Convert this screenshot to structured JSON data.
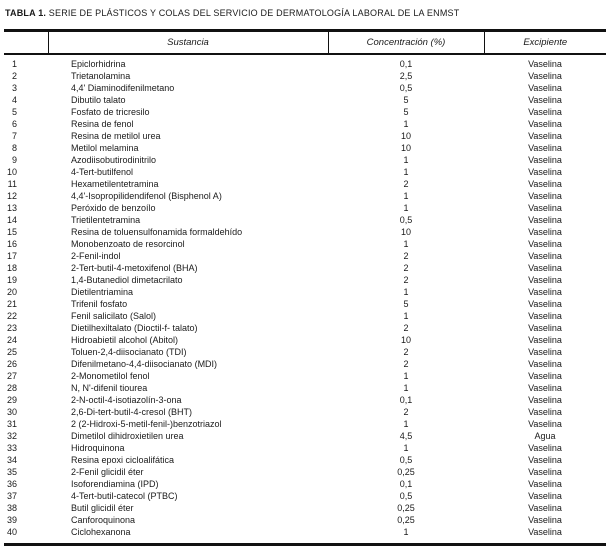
{
  "title": {
    "label": "TABLA 1.",
    "text": " SERIE DE PLÁSTICOS Y COLAS DEL SERVICIO DE DERMATOLOGÍA LABORAL DE LA ENMST"
  },
  "colors": {
    "text": "#1a1a1a",
    "rule": "#111111",
    "background": "#ffffff"
  },
  "table": {
    "headers": [
      "",
      "Sustancia",
      "Concentración (%)",
      "Excipiente"
    ],
    "rows": [
      {
        "num": "1",
        "sustancia": "Epiclorhidrina",
        "concentracion": "0,1",
        "excipiente": "Vaselina"
      },
      {
        "num": "2",
        "sustancia": "Trietanolamina",
        "concentracion": "2,5",
        "excipiente": "Vaselina"
      },
      {
        "num": "3",
        "sustancia": "4,4' Diaminodifenilmetano",
        "concentracion": "0,5",
        "excipiente": "Vaselina"
      },
      {
        "num": "4",
        "sustancia": "Dibutilo talato",
        "concentracion": "5",
        "excipiente": "Vaselina"
      },
      {
        "num": "5",
        "sustancia": "Fosfato de tricresilo",
        "concentracion": "5",
        "excipiente": "Vaselina"
      },
      {
        "num": "6",
        "sustancia": "Resina de fenol",
        "concentracion": "1",
        "excipiente": "Vaselina"
      },
      {
        "num": "7",
        "sustancia": "Resina de metilol urea",
        "concentracion": "10",
        "excipiente": "Vaselina"
      },
      {
        "num": "8",
        "sustancia": "Metilol melamina",
        "concentracion": "10",
        "excipiente": "Vaselina"
      },
      {
        "num": "9",
        "sustancia": "Azodiisobutirodinitrilo",
        "concentracion": "1",
        "excipiente": "Vaselina"
      },
      {
        "num": "10",
        "sustancia": "4-Tert-butilfenol",
        "concentracion": "1",
        "excipiente": "Vaselina"
      },
      {
        "num": "11",
        "sustancia": "Hexametilentetramina",
        "concentracion": "2",
        "excipiente": "Vaselina"
      },
      {
        "num": "12",
        "sustancia": "4,4'-Isopropilidendifenol (Bisphenol A)",
        "concentracion": "1",
        "excipiente": "Vaselina"
      },
      {
        "num": "13",
        "sustancia": "Peróxido de benzoílo",
        "concentracion": "1",
        "excipiente": "Vaselina"
      },
      {
        "num": "14",
        "sustancia": "Trietilentetramina",
        "concentracion": "0,5",
        "excipiente": "Vaselina"
      },
      {
        "num": "15",
        "sustancia": "Resina de toluensulfonamida formaldehído",
        "concentracion": "10",
        "excipiente": "Vaselina"
      },
      {
        "num": "16",
        "sustancia": "Monobenzoato de resorcinol",
        "concentracion": "1",
        "excipiente": "Vaselina"
      },
      {
        "num": "17",
        "sustancia": "2-Fenil-indol",
        "concentracion": "2",
        "excipiente": "Vaselina"
      },
      {
        "num": "18",
        "sustancia": "2-Tert-butil-4-metoxifenol (BHA)",
        "concentracion": "2",
        "excipiente": "Vaselina"
      },
      {
        "num": "19",
        "sustancia": "1,4-Butanediol dimetacrilato",
        "concentracion": "2",
        "excipiente": "Vaselina"
      },
      {
        "num": "20",
        "sustancia": "Dietilentriamina",
        "concentracion": "1",
        "excipiente": "Vaselina"
      },
      {
        "num": "21",
        "sustancia": "Trifenil fosfato",
        "concentracion": "5",
        "excipiente": "Vaselina"
      },
      {
        "num": "22",
        "sustancia": "Fenil salicilato (Salol)",
        "concentracion": "1",
        "excipiente": "Vaselina"
      },
      {
        "num": "23",
        "sustancia": "Dietilhexiltalato (Dioctil-f- talato)",
        "concentracion": "2",
        "excipiente": "Vaselina"
      },
      {
        "num": "24",
        "sustancia": "Hidroabietil alcohol (Abitol)",
        "concentracion": "10",
        "excipiente": "Vaselina"
      },
      {
        "num": "25",
        "sustancia": "Toluen-2,4-diisocianato (TDI)",
        "concentracion": "2",
        "excipiente": "Vaselina"
      },
      {
        "num": "26",
        "sustancia": "Difenilmetano-4,4-diisocianato (MDI)",
        "concentracion": "2",
        "excipiente": "Vaselina"
      },
      {
        "num": "27",
        "sustancia": "2-Monometilol fenol",
        "concentracion": "1",
        "excipiente": "Vaselina"
      },
      {
        "num": "28",
        "sustancia": "N, N'-difenil tiourea",
        "concentracion": "1",
        "excipiente": "Vaselina"
      },
      {
        "num": "29",
        "sustancia": "2-N-octil-4-isotiazolín-3-ona",
        "concentracion": "0,1",
        "excipiente": "Vaselina"
      },
      {
        "num": "30",
        "sustancia": "2,6-Di-tert-butil-4-cresol (BHT)",
        "concentracion": "2",
        "excipiente": "Vaselina"
      },
      {
        "num": "31",
        "sustancia": "2 (2-Hidroxi-5-metil-fenil-)benzotriazol",
        "concentracion": "1",
        "excipiente": "Vaselina"
      },
      {
        "num": "32",
        "sustancia": "Dimetilol dihidroxietilen urea",
        "concentracion": "4,5",
        "excipiente": "Agua"
      },
      {
        "num": "33",
        "sustancia": "Hidroquinona",
        "concentracion": "1",
        "excipiente": "Vaselina"
      },
      {
        "num": "34",
        "sustancia": "Resina epoxi cicloalifática",
        "concentracion": "0,5",
        "excipiente": "Vaselina"
      },
      {
        "num": "35",
        "sustancia": "2-Fenil glicidil éter",
        "concentracion": "0,25",
        "excipiente": "Vaselina"
      },
      {
        "num": "36",
        "sustancia": "Isoforendiamina (IPD)",
        "concentracion": "0,1",
        "excipiente": "Vaselina"
      },
      {
        "num": "37",
        "sustancia": "4-Tert-butil-catecol (PTBC)",
        "concentracion": "0,5",
        "excipiente": "Vaselina"
      },
      {
        "num": "38",
        "sustancia": "Butil glicidil éter",
        "concentracion": "0,25",
        "excipiente": "Vaselina"
      },
      {
        "num": "39",
        "sustancia": "Canforoquinona",
        "concentracion": "0,25",
        "excipiente": "Vaselina"
      },
      {
        "num": "40",
        "sustancia": "Ciclohexanona",
        "concentracion": "1",
        "excipiente": "Vaselina"
      }
    ]
  }
}
